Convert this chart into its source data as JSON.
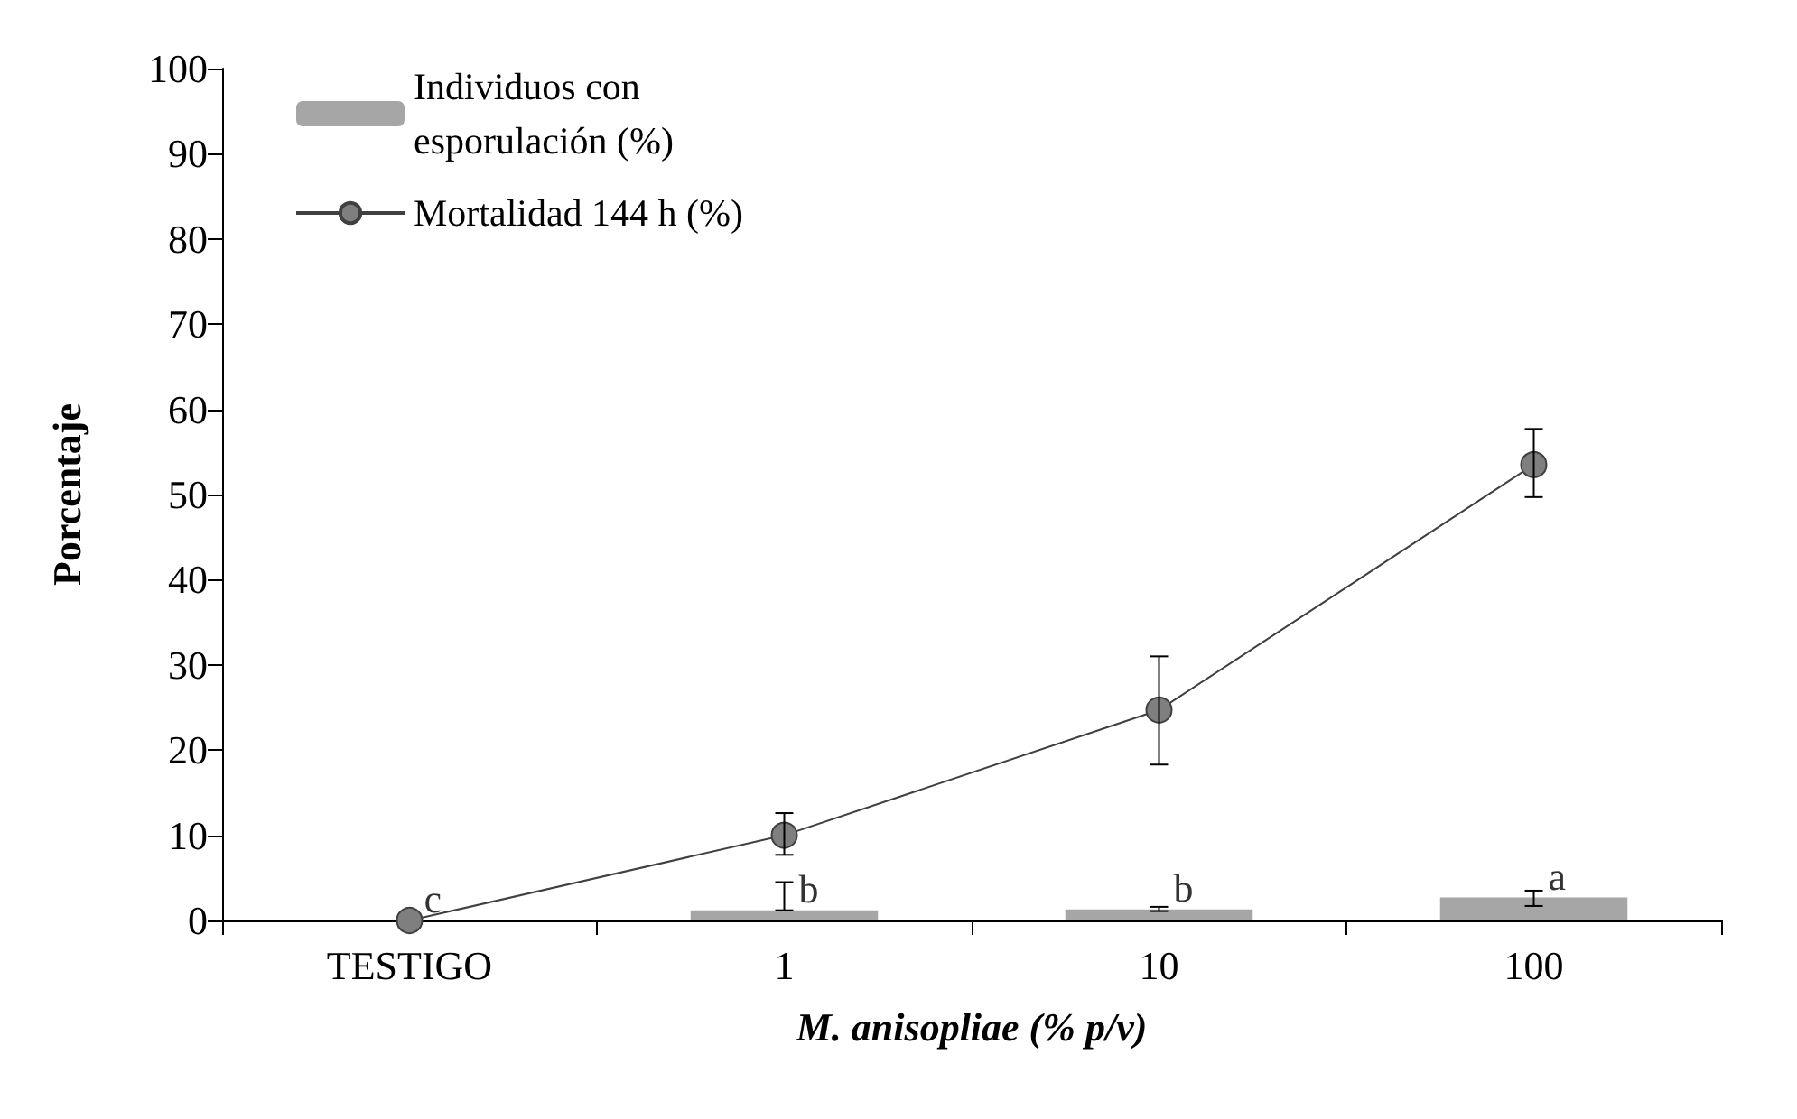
{
  "chart_data": {
    "type": "bar",
    "xlabel": "M. anisopliae (% p/v)",
    "ylabel": "Porcentaje",
    "categories": [
      "TESTIGO",
      "1",
      "10",
      "100"
    ],
    "series": [
      {
        "name": "Individuos con esporulación (%)",
        "color": "#a6a6a6",
        "values": [
          0,
          1.2,
          1.3,
          2.7
        ],
        "errors": [
          null,
          [
            1.2,
            4.5
          ],
          [
            1.1,
            1.6
          ],
          [
            1.7,
            3.5
          ]
        ]
      },
      {
        "name": "Mortalidad 144 h (%)",
        "type": "line",
        "color": "#7f7f7f",
        "values": [
          0,
          10,
          24.7,
          53.5
        ],
        "errors": [
          null,
          [
            7.7,
            12.6
          ],
          [
            18.3,
            31
          ],
          [
            49.7,
            57.7
          ]
        ],
        "marker": "circle"
      }
    ],
    "ylim": [
      0,
      100
    ],
    "yticks": [
      0,
      10,
      20,
      30,
      40,
      50,
      60,
      70,
      80,
      90,
      100
    ],
    "grid": false,
    "legend": "top left",
    "annotations": [
      {
        "text": "c",
        "x": "TESTIGO",
        "y": 0
      },
      {
        "text": "b",
        "x": "1",
        "y": 1.2
      },
      {
        "text": "b",
        "x": "10",
        "y": 1.3
      },
      {
        "text": "a",
        "x": "100",
        "y": 2.7
      }
    ]
  }
}
